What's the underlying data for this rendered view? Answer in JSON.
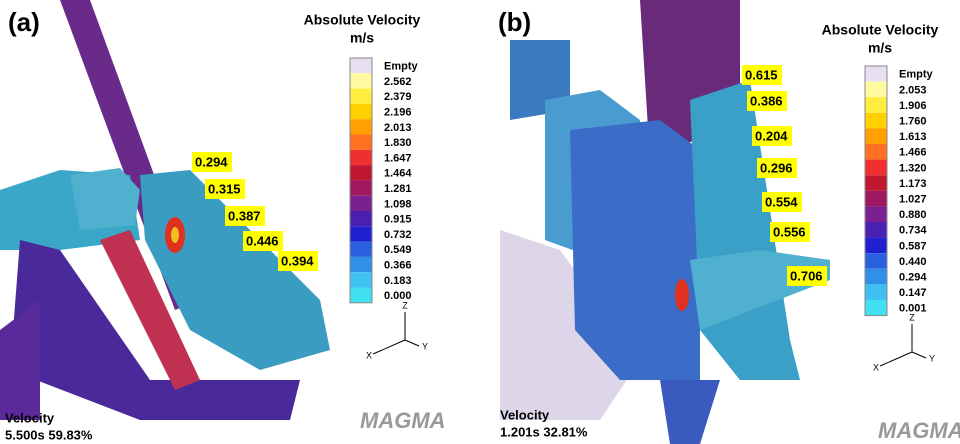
{
  "panels": [
    {
      "label": "(a)",
      "legend": {
        "title": "Absolute Velocity",
        "unit": "m/s",
        "entries": [
          "Empty",
          "2.562",
          "2.379",
          "2.196",
          "2.013",
          "1.830",
          "1.647",
          "1.464",
          "1.281",
          "1.098",
          "0.915",
          "0.732",
          "0.549",
          "0.366",
          "0.183",
          "0.000"
        ]
      },
      "annotations": [
        "0.294",
        "0.315",
        "0.387",
        "0.446",
        "0.394"
      ],
      "axes": [
        "Z",
        "X",
        "Y"
      ],
      "footer": {
        "quantity": "Velocity",
        "status": "5.500s  59.83%"
      },
      "logo": "MAGMA"
    },
    {
      "label": "(b)",
      "legend": {
        "title": "Absolute Velocity",
        "unit": "m/s",
        "entries": [
          "Empty",
          "2.053",
          "1.906",
          "1.760",
          "1.613",
          "1.466",
          "1.320",
          "1.173",
          "1.027",
          "0.880",
          "0.734",
          "0.587",
          "0.440",
          "0.294",
          "0.147",
          "0.001"
        ]
      },
      "annotations": [
        "0.615",
        "0.386",
        "0.204",
        "0.296",
        "0.554",
        "0.556",
        "0.706"
      ],
      "axes": [
        "Z",
        "X",
        "Y"
      ],
      "footer": {
        "quantity": "Velocity",
        "status": "1.201s  32.81%"
      },
      "logo": "MAGMA"
    }
  ]
}
